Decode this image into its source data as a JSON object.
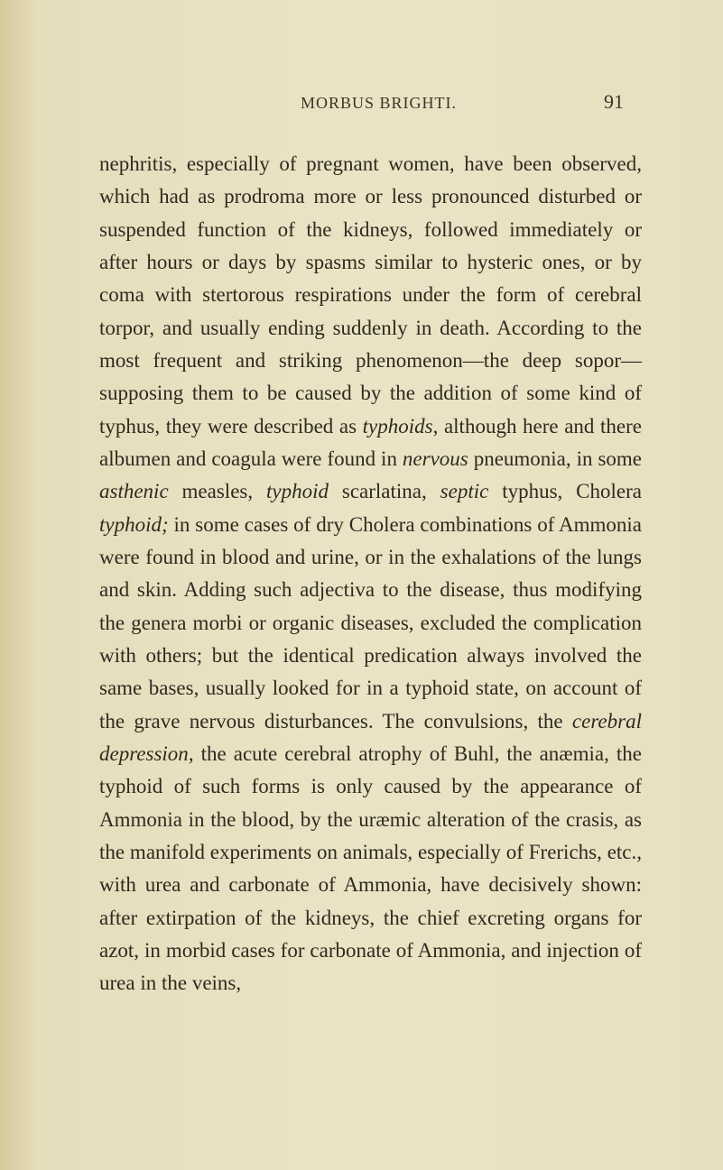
{
  "header": {
    "running_title": "MORBUS BRIGHTI.",
    "page_number": "91"
  },
  "paragraph": {
    "segments": [
      {
        "text": "nephritis, especially of pregnant women, have been observed, which had as prodroma more or less pro­nounced disturbed or suspended function of the kidneys, followed immediately or after hours or days by spasms similar to hysteric ones, or by coma with stertorous respirations under the form of cerebral torpor, and usually ending suddenly in death. Ac­cording to the most frequent and striking phenome­non—the deep sopor—supposing them to be caused by the addition of some kind of typhus, they were described as ",
        "italic": false
      },
      {
        "text": "typhoids",
        "italic": true
      },
      {
        "text": ", although here and there albumen and coagula were found in ",
        "italic": false
      },
      {
        "text": "nervous",
        "italic": true
      },
      {
        "text": " pneumonia, in some ",
        "italic": false
      },
      {
        "text": "asthenic",
        "italic": true
      },
      {
        "text": " measles, ",
        "italic": false
      },
      {
        "text": "typhoid",
        "italic": true
      },
      {
        "text": " scarlatina, ",
        "italic": false
      },
      {
        "text": "septic",
        "italic": true
      },
      {
        "text": " typhus, Cholera ",
        "italic": false
      },
      {
        "text": "typhoid;",
        "italic": true
      },
      {
        "text": " in some cases of dry Cholera combinations of Ammonia were found in blood and urine, or in the exhalations of the lungs and skin. Adding such adjectiva to the disease, thus modify­ing the genera morbi or organic diseases, excluded the complication with others; but the identical predication always involved the same bases, usually looked for in a typhoid state, on account of the grave nervous disturbances. The convulsions, the ",
        "italic": false
      },
      {
        "text": "cerebral depression",
        "italic": true
      },
      {
        "text": ", the acute cerebral atrophy of Buhl, the anæmia, the typhoid of such forms is only caused by the appearance of Ammonia in the blood, by the uræmic alteration of the crasis, as the manifold experiments on animals, especially of Frerichs, etc., with urea and carbonate of Ammonia, have decisively shown: after extirpation of the kidneys, the chief excreting organs for azot, in morbid cases for carbon­ate of Ammonia, and injection of urea in the veins,",
        "italic": false
      }
    ]
  },
  "styling": {
    "page_background": "#e8dfc0",
    "text_color": "#2e2a1f",
    "header_color": "#3a3528",
    "body_font_size": 23,
    "header_font_size": 18,
    "page_number_font_size": 22,
    "line_height": 1.58,
    "font_family": "Georgia, 'Times New Roman', serif"
  }
}
